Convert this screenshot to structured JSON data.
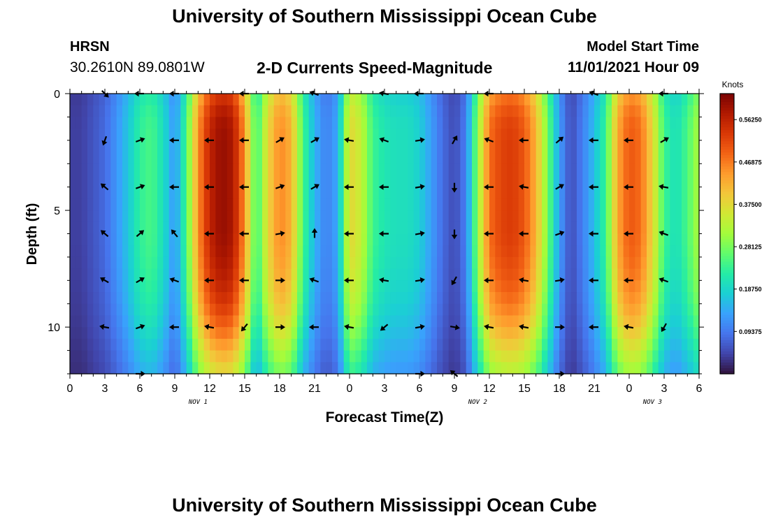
{
  "header": {
    "title": "University of Southern Mississippi Ocean Cube",
    "station": "HRSN",
    "coords": "30.2610N  89.0801W",
    "chart_title": "2-D Currents Speed-Magnitude",
    "model_label": "Model Start Time",
    "model_value": "11/01/2021 Hour 09"
  },
  "footer": {
    "title": "University of Southern Mississippi Ocean Cube"
  },
  "chart_data": {
    "type": "heatmap",
    "title": "2-D Currents Speed-Magnitude",
    "xlabel": "Forecast Time(Z)",
    "ylabel": "Depth (ft)",
    "x_tick_labels": [
      "0",
      "3",
      "6",
      "9",
      "12",
      "15",
      "18",
      "21",
      "0",
      "3",
      "6",
      "9",
      "12",
      "15",
      "18",
      "21",
      "0",
      "3",
      "6"
    ],
    "x_hours": [
      0,
      3,
      6,
      9,
      12,
      15,
      18,
      21,
      24,
      27,
      30,
      33,
      36,
      39,
      42,
      45,
      48,
      51,
      54
    ],
    "x_range": [
      0,
      54
    ],
    "date_labels": [
      {
        "text": "NOV 1",
        "hour": 11
      },
      {
        "text": "NOV 2",
        "hour": 35
      },
      {
        "text": "NOV 3",
        "hour": 50
      }
    ],
    "y_tick_labels": [
      "0",
      "5",
      "10"
    ],
    "y_ticks": [
      0,
      5,
      10
    ],
    "y_range": [
      0,
      12
    ],
    "colorbar": {
      "unit": "Knots",
      "min": 0,
      "max": 0.62,
      "tick_labels": [
        "0.09375",
        "0.18750",
        "0.28125",
        "0.37500",
        "0.46875",
        "0.56250"
      ],
      "ticks": [
        0.09375,
        0.1875,
        0.28125,
        0.375,
        0.46875,
        0.5625
      ],
      "colors": [
        "#30123b",
        "#4145ab",
        "#4675ed",
        "#39a2fc",
        "#1bcfd4",
        "#24eca6",
        "#61fc6c",
        "#a4fc3b",
        "#d1e834",
        "#f3c63a",
        "#fe9b2d",
        "#f36315",
        "#d93806",
        "#b11901",
        "#7a0403"
      ]
    },
    "speed_profile": {
      "hours": [
        0,
        1,
        2,
        3,
        4,
        5,
        6,
        7,
        8,
        9,
        10,
        11,
        12,
        13,
        14,
        15,
        16,
        17,
        18,
        19,
        20,
        21,
        22,
        23,
        24,
        25,
        26,
        27,
        28,
        29,
        30,
        31,
        32,
        33,
        34,
        35,
        36,
        37,
        38,
        39,
        40,
        41,
        42,
        43,
        44,
        45,
        46,
        47,
        48,
        49,
        50,
        51,
        52,
        53,
        54
      ],
      "values": [
        0.04,
        0.04,
        0.06,
        0.08,
        0.12,
        0.17,
        0.23,
        0.25,
        0.2,
        0.12,
        0.25,
        0.45,
        0.56,
        0.6,
        0.58,
        0.45,
        0.23,
        0.38,
        0.46,
        0.42,
        0.25,
        0.15,
        0.1,
        0.14,
        0.38,
        0.34,
        0.24,
        0.21,
        0.2,
        0.2,
        0.18,
        0.13,
        0.08,
        0.05,
        0.1,
        0.3,
        0.48,
        0.52,
        0.53,
        0.5,
        0.42,
        0.28,
        0.13,
        0.05,
        0.1,
        0.16,
        0.24,
        0.43,
        0.5,
        0.48,
        0.38,
        0.24,
        0.2,
        0.25,
        0.32
      ]
    },
    "depth_factors": {
      "depths": [
        0,
        1,
        2,
        3,
        4,
        5,
        6,
        7,
        8,
        9,
        10,
        11,
        12
      ],
      "values": [
        0.9,
        0.98,
        1.0,
        1.0,
        1.0,
        1.0,
        1.0,
        0.98,
        0.95,
        0.9,
        0.82,
        0.72,
        0.62
      ]
    },
    "arrows": [
      {
        "hour": 3,
        "depth": 0,
        "angle": 45
      },
      {
        "hour": 6,
        "depth": 0,
        "angle": 180
      },
      {
        "hour": 9,
        "depth": 0,
        "angle": 180
      },
      {
        "hour": 15,
        "depth": 0,
        "angle": 180
      },
      {
        "hour": 21,
        "depth": 0,
        "angle": 200
      },
      {
        "hour": 27,
        "depth": 0,
        "angle": 190
      },
      {
        "hour": 30,
        "depth": 0,
        "angle": 180
      },
      {
        "hour": 36,
        "depth": 0,
        "angle": 180
      },
      {
        "hour": 45,
        "depth": 0,
        "angle": 200
      },
      {
        "hour": 51,
        "depth": 0,
        "angle": 180
      },
      {
        "hour": 3,
        "depth": 2,
        "angle": 110
      },
      {
        "hour": 6,
        "depth": 2,
        "angle": -20
      },
      {
        "hour": 9,
        "depth": 2,
        "angle": 180
      },
      {
        "hour": 12,
        "depth": 2,
        "angle": 180
      },
      {
        "hour": 15,
        "depth": 2,
        "angle": 180
      },
      {
        "hour": 18,
        "depth": 2,
        "angle": -30
      },
      {
        "hour": 21,
        "depth": 2,
        "angle": -30
      },
      {
        "hour": 24,
        "depth": 2,
        "angle": 190
      },
      {
        "hour": 27,
        "depth": 2,
        "angle": 200
      },
      {
        "hour": 30,
        "depth": 2,
        "angle": -10
      },
      {
        "hour": 33,
        "depth": 2,
        "angle": -60
      },
      {
        "hour": 36,
        "depth": 2,
        "angle": 200
      },
      {
        "hour": 39,
        "depth": 2,
        "angle": 180
      },
      {
        "hour": 42,
        "depth": 2,
        "angle": -40
      },
      {
        "hour": 45,
        "depth": 2,
        "angle": 180
      },
      {
        "hour": 48,
        "depth": 2,
        "angle": 180
      },
      {
        "hour": 51,
        "depth": 2,
        "angle": -30
      },
      {
        "hour": 3,
        "depth": 4,
        "angle": 220
      },
      {
        "hour": 6,
        "depth": 4,
        "angle": -20
      },
      {
        "hour": 9,
        "depth": 4,
        "angle": 180
      },
      {
        "hour": 12,
        "depth": 4,
        "angle": 180
      },
      {
        "hour": 15,
        "depth": 4,
        "angle": 180
      },
      {
        "hour": 18,
        "depth": 4,
        "angle": -20
      },
      {
        "hour": 21,
        "depth": 4,
        "angle": -30
      },
      {
        "hour": 24,
        "depth": 4,
        "angle": 180
      },
      {
        "hour": 27,
        "depth": 4,
        "angle": 180
      },
      {
        "hour": 30,
        "depth": 4,
        "angle": -10
      },
      {
        "hour": 33,
        "depth": 4,
        "angle": 90
      },
      {
        "hour": 36,
        "depth": 4,
        "angle": 180
      },
      {
        "hour": 39,
        "depth": 4,
        "angle": 190
      },
      {
        "hour": 42,
        "depth": 4,
        "angle": -30
      },
      {
        "hour": 45,
        "depth": 4,
        "angle": 180
      },
      {
        "hour": 48,
        "depth": 4,
        "angle": 180
      },
      {
        "hour": 51,
        "depth": 4,
        "angle": 190
      },
      {
        "hour": 3,
        "depth": 6,
        "angle": 220
      },
      {
        "hour": 6,
        "depth": 6,
        "angle": -40
      },
      {
        "hour": 9,
        "depth": 6,
        "angle": 230
      },
      {
        "hour": 12,
        "depth": 6,
        "angle": 180
      },
      {
        "hour": 15,
        "depth": 6,
        "angle": 180
      },
      {
        "hour": 18,
        "depth": 6,
        "angle": -10
      },
      {
        "hour": 21,
        "depth": 6,
        "angle": -90
      },
      {
        "hour": 24,
        "depth": 6,
        "angle": 180
      },
      {
        "hour": 27,
        "depth": 6,
        "angle": 180
      },
      {
        "hour": 30,
        "depth": 6,
        "angle": -10
      },
      {
        "hour": 33,
        "depth": 6,
        "angle": 90
      },
      {
        "hour": 36,
        "depth": 6,
        "angle": 180
      },
      {
        "hour": 39,
        "depth": 6,
        "angle": 180
      },
      {
        "hour": 42,
        "depth": 6,
        "angle": -20
      },
      {
        "hour": 45,
        "depth": 6,
        "angle": 180
      },
      {
        "hour": 48,
        "depth": 6,
        "angle": 180
      },
      {
        "hour": 51,
        "depth": 6,
        "angle": 200
      },
      {
        "hour": 3,
        "depth": 8,
        "angle": 210
      },
      {
        "hour": 6,
        "depth": 8,
        "angle": -30
      },
      {
        "hour": 9,
        "depth": 8,
        "angle": 200
      },
      {
        "hour": 12,
        "depth": 8,
        "angle": 180
      },
      {
        "hour": 15,
        "depth": 8,
        "angle": 180
      },
      {
        "hour": 18,
        "depth": 8,
        "angle": 0
      },
      {
        "hour": 21,
        "depth": 8,
        "angle": 200
      },
      {
        "hour": 24,
        "depth": 8,
        "angle": 180
      },
      {
        "hour": 27,
        "depth": 8,
        "angle": 190
      },
      {
        "hour": 30,
        "depth": 8,
        "angle": -10
      },
      {
        "hour": 33,
        "depth": 8,
        "angle": 120
      },
      {
        "hour": 36,
        "depth": 8,
        "angle": 180
      },
      {
        "hour": 39,
        "depth": 8,
        "angle": 190
      },
      {
        "hour": 42,
        "depth": 8,
        "angle": -10
      },
      {
        "hour": 45,
        "depth": 8,
        "angle": 180
      },
      {
        "hour": 48,
        "depth": 8,
        "angle": 180
      },
      {
        "hour": 51,
        "depth": 8,
        "angle": 200
      },
      {
        "hour": 3,
        "depth": 10,
        "angle": 190
      },
      {
        "hour": 6,
        "depth": 10,
        "angle": -20
      },
      {
        "hour": 9,
        "depth": 10,
        "angle": 180
      },
      {
        "hour": 12,
        "depth": 10,
        "angle": 190
      },
      {
        "hour": 15,
        "depth": 10,
        "angle": 130
      },
      {
        "hour": 18,
        "depth": 10,
        "angle": 0
      },
      {
        "hour": 21,
        "depth": 10,
        "angle": 180
      },
      {
        "hour": 24,
        "depth": 10,
        "angle": 190
      },
      {
        "hour": 27,
        "depth": 10,
        "angle": 140
      },
      {
        "hour": 30,
        "depth": 10,
        "angle": -10
      },
      {
        "hour": 33,
        "depth": 10,
        "angle": 10
      },
      {
        "hour": 36,
        "depth": 10,
        "angle": 190
      },
      {
        "hour": 39,
        "depth": 10,
        "angle": 190
      },
      {
        "hour": 42,
        "depth": 10,
        "angle": 0
      },
      {
        "hour": 45,
        "depth": 10,
        "angle": 180
      },
      {
        "hour": 48,
        "depth": 10,
        "angle": 190
      },
      {
        "hour": 51,
        "depth": 10,
        "angle": 120
      },
      {
        "hour": 6,
        "depth": 12,
        "angle": 0
      },
      {
        "hour": 30,
        "depth": 12,
        "angle": 0
      },
      {
        "hour": 33,
        "depth": 12,
        "angle": -140
      },
      {
        "hour": 42,
        "depth": 12,
        "angle": 0
      }
    ]
  }
}
